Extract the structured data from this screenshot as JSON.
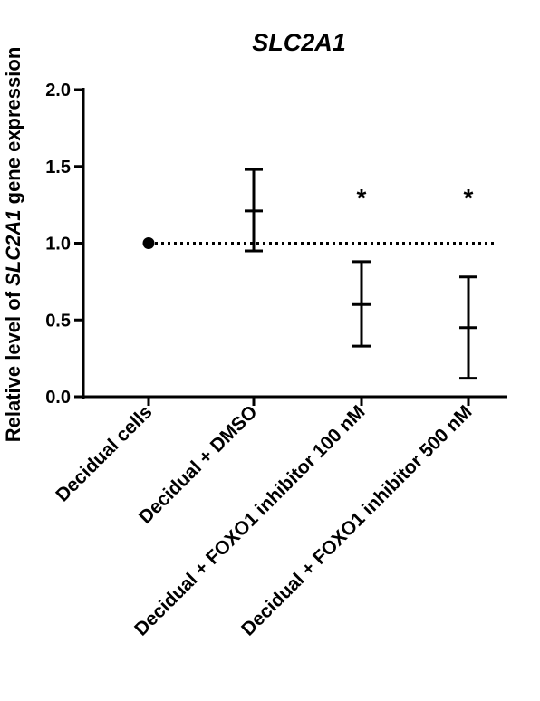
{
  "chart_data": {
    "type": "scatter",
    "title": "SLC2A1",
    "ylabel": {
      "prefix": "Relative level of ",
      "italic": "SLC2A1",
      "suffix": " gene expression"
    },
    "xlabel": "",
    "ylim": [
      0,
      2.0
    ],
    "yticks": [
      "0.0",
      "0.5",
      "1.0",
      "1.5",
      "2.0"
    ],
    "grid": false,
    "categories": [
      "Decidual cells",
      "Decidual + DMSO",
      "Decidual + FOXO1 inhibitor 100 nM",
      "Decidual + FOXO1 inhibitor 500 nM"
    ],
    "series": [
      {
        "mean": [
          1.0,
          1.21,
          0.6,
          0.45
        ],
        "lower": [
          1.0,
          0.95,
          0.33,
          0.12
        ],
        "upper": [
          1.0,
          1.48,
          0.88,
          0.78
        ],
        "marker": [
          "dot",
          "none",
          "none",
          "none"
        ],
        "significance": [
          "",
          "",
          "*",
          "*"
        ]
      }
    ],
    "reference_line": {
      "y": 1.0,
      "style": "dotted"
    }
  }
}
